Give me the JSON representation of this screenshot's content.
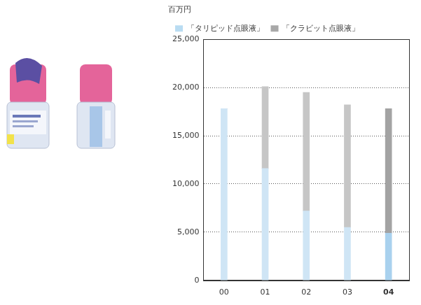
{
  "chart_data": {
    "type": "bar",
    "stacked": true,
    "ylabel": "百万円",
    "categories": [
      "00",
      "01",
      "02",
      "03",
      "04"
    ],
    "series": [
      {
        "name": "「タリピッド点眼液」",
        "color": "#b9dcf2",
        "colors": [
          "#cfe5f5",
          "#cfe5f5",
          "#cfe5f5",
          "#cfe5f5",
          "#a9d1ee"
        ],
        "values": [
          17800,
          11600,
          7200,
          5500,
          4900
        ]
      },
      {
        "name": "「クラビット点眼液」",
        "color": "#a8a8a8",
        "colors": [
          "#c6c6c6",
          "#c6c6c6",
          "#c6c6c6",
          "#c6c6c6",
          "#a3a3a3"
        ],
        "values": [
          0,
          8500,
          12300,
          12700,
          12900
        ]
      }
    ],
    "ylim": [
      0,
      25000
    ],
    "yticks": [
      0,
      {
        "value": 5000,
        "label": "5,000"
      },
      {
        "value": 10000,
        "label": "10,000"
      },
      {
        "value": 15000,
        "label": "15,000"
      },
      {
        "value": 20000,
        "label": "20,000"
      },
      {
        "value": 25000,
        "label": "25,000"
      }
    ],
    "grid": true,
    "legend": "top-left"
  }
}
